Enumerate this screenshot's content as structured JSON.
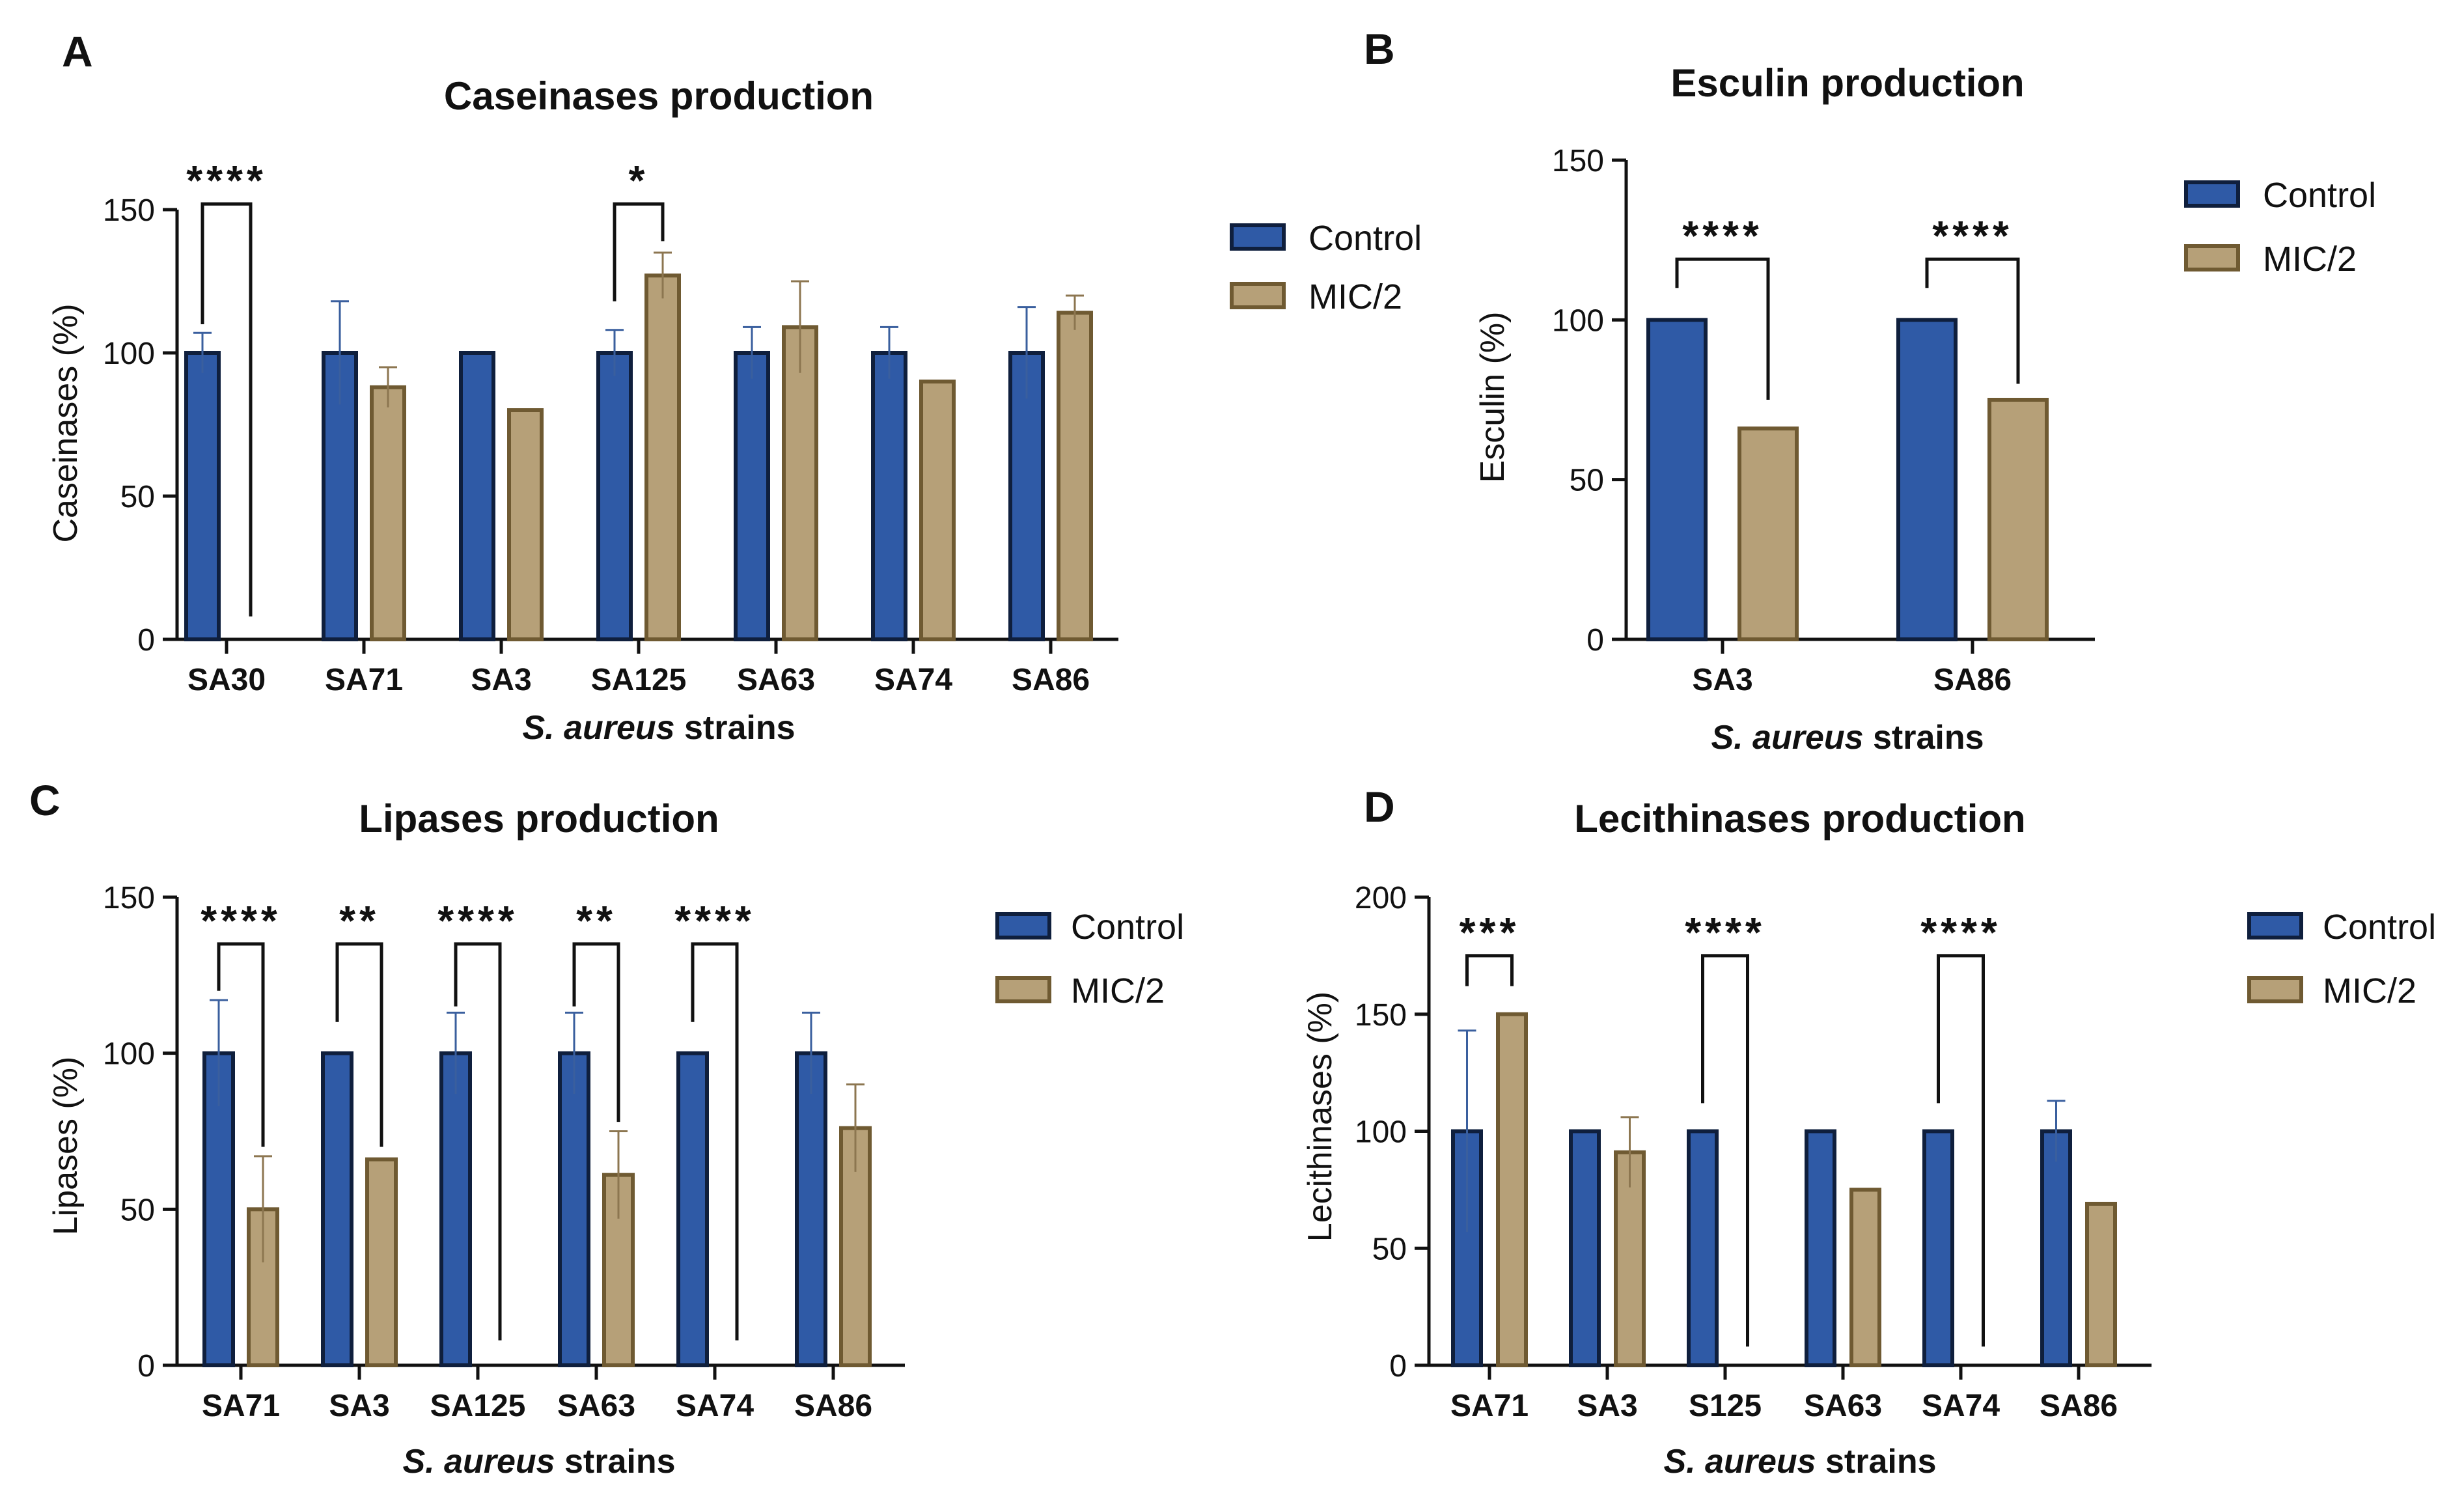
{
  "colors": {
    "control_fill": "#2f5aa6",
    "control_stroke": "#0f1f3d",
    "mic_fill": "#b6a078",
    "mic_stroke": "#6f5a32",
    "axis": "#111111"
  },
  "chart_data": [
    {
      "panel": "A",
      "type": "bar",
      "title": "Caseinases production",
      "ylabel": "Caseinases (%)",
      "xlabel_italic": "S. aureus",
      "xlabel_rest": " strains",
      "ylim": [
        0,
        150
      ],
      "yticks": [
        0,
        50,
        100,
        150
      ],
      "categories": [
        "SA30",
        "SA71",
        "SA3",
        "SA125",
        "SA63",
        "SA74",
        "SA86"
      ],
      "series": [
        {
          "name": "Control",
          "values": [
            100,
            100,
            100,
            100,
            100,
            100,
            100
          ],
          "errors": [
            7,
            18,
            0,
            8,
            9,
            9,
            16
          ]
        },
        {
          "name": "MIC/2",
          "values": [
            0,
            88,
            80,
            127,
            109,
            90,
            114
          ],
          "errors": [
            0,
            7,
            0,
            8,
            16,
            0,
            6
          ]
        }
      ],
      "significance": [
        {
          "index": 0,
          "label": "****",
          "level": 152,
          "left": 110,
          "right": 8
        },
        {
          "index": 3,
          "label": "*",
          "level": 152,
          "left": 118,
          "right": 139
        }
      ],
      "legend": [
        "Control",
        "MIC/2"
      ]
    },
    {
      "panel": "B",
      "type": "bar",
      "title": "Esculin production",
      "ylabel": "Esculin (%)",
      "xlabel_italic": "S. aureus",
      "xlabel_rest": " strains",
      "ylim": [
        0,
        150
      ],
      "yticks": [
        0,
        50,
        100,
        150
      ],
      "categories": [
        "SA3",
        "SA86"
      ],
      "series": [
        {
          "name": "Control",
          "values": [
            100,
            100
          ],
          "errors": [
            0,
            0
          ]
        },
        {
          "name": "MIC/2",
          "values": [
            66,
            75
          ],
          "errors": [
            0,
            0
          ]
        }
      ],
      "significance": [
        {
          "index": 0,
          "label": "****",
          "level": 119,
          "left": 110,
          "right": 75
        },
        {
          "index": 1,
          "label": "****",
          "level": 119,
          "left": 110,
          "right": 80
        }
      ],
      "legend": [
        "Control",
        "MIC/2"
      ]
    },
    {
      "panel": "C",
      "type": "bar",
      "title": "Lipases production",
      "ylabel": "Lipases (%)",
      "xlabel_italic": "S. aureus",
      "xlabel_rest": " strains",
      "ylim": [
        0,
        150
      ],
      "yticks": [
        0,
        50,
        100,
        150
      ],
      "categories": [
        "SA71",
        "SA3",
        "SA125",
        "SA63",
        "SA74",
        "SA86"
      ],
      "series": [
        {
          "name": "Control",
          "values": [
            100,
            100,
            100,
            100,
            100,
            100
          ],
          "errors": [
            17,
            0,
            13,
            13,
            0,
            13
          ]
        },
        {
          "name": "MIC/2",
          "values": [
            50,
            66,
            0,
            61,
            0,
            76
          ],
          "errors": [
            17,
            0,
            0,
            14,
            0,
            14
          ]
        }
      ],
      "significance": [
        {
          "index": 0,
          "label": "****",
          "level": 135,
          "left": 120,
          "right": 70
        },
        {
          "index": 1,
          "label": "**",
          "level": 135,
          "left": 110,
          "right": 70
        },
        {
          "index": 2,
          "label": "****",
          "level": 135,
          "left": 115,
          "right": 8
        },
        {
          "index": 3,
          "label": "**",
          "level": 135,
          "left": 115,
          "right": 78
        },
        {
          "index": 4,
          "label": "****",
          "level": 135,
          "left": 110,
          "right": 8
        }
      ],
      "legend": [
        "Control",
        "MIC/2"
      ]
    },
    {
      "panel": "D",
      "type": "bar",
      "title": "Lecithinases production",
      "ylabel": "Lecithinases (%)",
      "xlabel_italic": "S. aureus",
      "xlabel_rest": " strains",
      "ylim": [
        0,
        200
      ],
      "yticks": [
        0,
        50,
        100,
        150,
        200
      ],
      "categories": [
        "SA71",
        "SA3",
        "S125",
        "SA63",
        "SA74",
        "SA86"
      ],
      "series": [
        {
          "name": "Control",
          "values": [
            100,
            100,
            100,
            100,
            100,
            100
          ],
          "errors": [
            43,
            0,
            0,
            0,
            0,
            13
          ]
        },
        {
          "name": "MIC/2",
          "values": [
            150,
            91,
            0,
            75,
            0,
            69
          ],
          "errors": [
            0,
            15,
            0,
            0,
            0,
            0
          ]
        }
      ],
      "significance": [
        {
          "index": 0,
          "label": "***",
          "level": 175,
          "left": 162,
          "right": 162
        },
        {
          "index": 2,
          "label": "****",
          "level": 175,
          "left": 112,
          "right": 8
        },
        {
          "index": 4,
          "label": "****",
          "level": 175,
          "left": 112,
          "right": 8
        }
      ],
      "legend": [
        "Control",
        "MIC/2"
      ]
    }
  ]
}
